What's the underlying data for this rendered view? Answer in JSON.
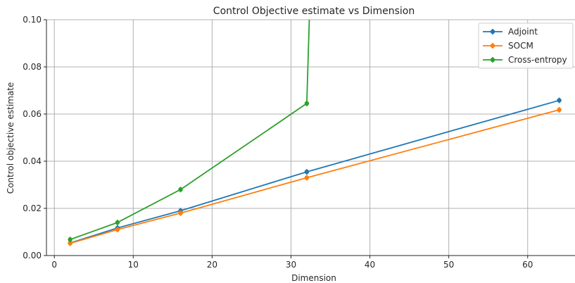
{
  "chart_data": {
    "type": "line",
    "title": "Control Objective estimate vs Dimension",
    "xlabel": "Dimension",
    "ylabel": "Control objective estimate",
    "xlim": [
      -1,
      66
    ],
    "ylim": [
      0,
      0.1
    ],
    "xticks": [
      0,
      10,
      20,
      30,
      40,
      50,
      60
    ],
    "yticks": [
      0.0,
      0.02,
      0.04,
      0.06,
      0.08,
      0.1
    ],
    "ytick_labels": [
      "0.00",
      "0.02",
      "0.04",
      "0.06",
      "0.08",
      "0.10"
    ],
    "grid": true,
    "legend_position": "top-right",
    "series": [
      {
        "name": "Adjoint",
        "color": "#1f77b4",
        "x": [
          2,
          8,
          16,
          32,
          64
        ],
        "y": [
          0.0053,
          0.0117,
          0.019,
          0.0355,
          0.0658
        ]
      },
      {
        "name": "SOCM",
        "color": "#ff7f0e",
        "x": [
          2,
          8,
          16,
          32,
          64
        ],
        "y": [
          0.0052,
          0.011,
          0.018,
          0.033,
          0.0618
        ]
      },
      {
        "name": "Cross-entropy",
        "color": "#2ca02c",
        "x": [
          2,
          8,
          16,
          32,
          32.5
        ],
        "y": [
          0.0068,
          0.014,
          0.028,
          0.0645,
          0.12
        ]
      }
    ]
  }
}
